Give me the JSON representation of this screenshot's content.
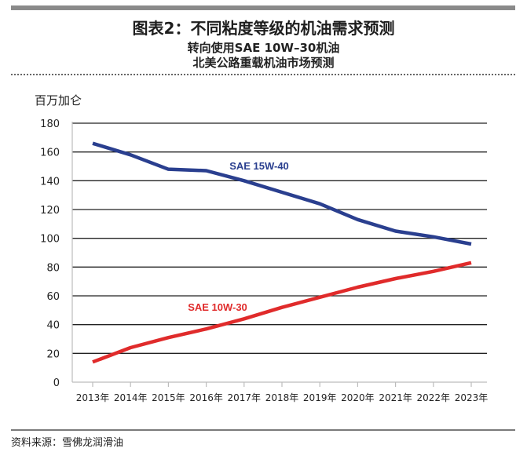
{
  "header": {
    "title": "图表2：不同粘度等级的机油需求预测",
    "subtitle1": "转向使用SAE 10W–30机油",
    "subtitle2": "北美公路重载机油市场预测"
  },
  "footer": {
    "source": "资料来源：雪佛龙润滑油"
  },
  "colors": {
    "blue": "#2a3f8f",
    "red": "#e02b2b",
    "grid": "#222222",
    "axis": "#bcbcbc"
  },
  "chart_data": {
    "type": "line",
    "ylabel": "百万加仑",
    "ylim": [
      0,
      180
    ],
    "yticks": [
      0,
      20,
      40,
      60,
      80,
      100,
      120,
      140,
      160,
      180
    ],
    "categories": [
      "2013年",
      "2014年",
      "2015年",
      "2016年",
      "2017年",
      "2018年",
      "2019年",
      "2020年",
      "2021年",
      "2022年",
      "2023年"
    ],
    "grid": true,
    "series": [
      {
        "name": "SAE 15W-40",
        "color": "#2a3f8f",
        "values": [
          166,
          158,
          148,
          147,
          140,
          132,
          124,
          113,
          105,
          101,
          96
        ]
      },
      {
        "name": "SAE 10W-30",
        "color": "#e02b2b",
        "values": [
          14,
          24,
          31,
          37,
          44,
          52,
          59,
          66,
          72,
          77,
          83
        ]
      }
    ]
  }
}
